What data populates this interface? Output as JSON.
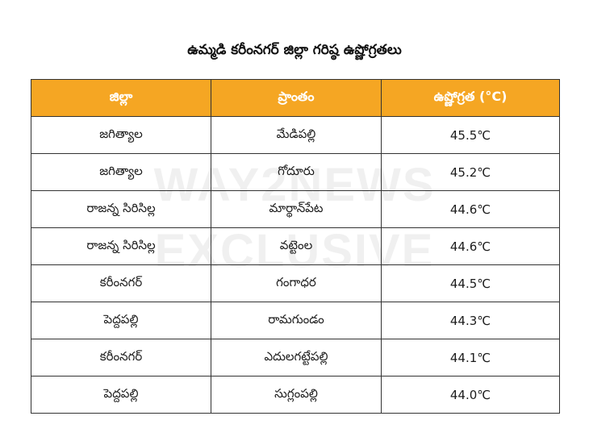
{
  "title": "ఉమ్మడి కరీంనగర్ జిల్లా గరిష్ఠ ఉష్ణోగ్రతలు",
  "watermark": {
    "line1": "WAY2NEWS",
    "line2": "EXCLUSIVE"
  },
  "colors": {
    "header_bg": "#f5a623",
    "header_text": "#ffffff"
  },
  "table": {
    "headers": [
      "జిల్లా",
      "ప్రాంతం",
      "ఉష్ణోగ్రత (°C)"
    ],
    "rows": [
      [
        "జగిత్యాల",
        "మేడిపల్లి",
        "45.5℃"
      ],
      [
        "జగిత్యాల",
        "గోదూరు",
        "45.2℃"
      ],
      [
        "రాజన్న సిరిసిల్ల",
        "మార్థాన్‌పేట",
        "44.6℃"
      ],
      [
        "రాజన్న సిరిసిల్ల",
        "వట్టెంల",
        "44.6℃"
      ],
      [
        "కరీంనగర్",
        "గంగాధర",
        "44.5℃"
      ],
      [
        "పెద్దపల్లి",
        "రామగుండం",
        "44.3℃"
      ],
      [
        "కరీంనగర్",
        "ఎదులగట్టేపల్లి",
        "44.1℃"
      ],
      [
        "పెద్దపల్లి",
        "సుగ్లంపల్లి",
        "44.0℃"
      ]
    ]
  }
}
